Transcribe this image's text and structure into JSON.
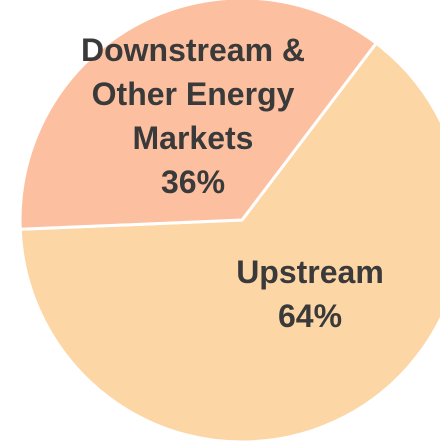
{
  "chart_data": {
    "type": "pie",
    "categories": [
      "Upstream",
      "Downstream & Other Energy Markets"
    ],
    "values": [
      64,
      36
    ],
    "value_labels": [
      "64%",
      "36%"
    ],
    "colors": [
      "#fdd6a6",
      "#fcc0a0"
    ]
  }
}
